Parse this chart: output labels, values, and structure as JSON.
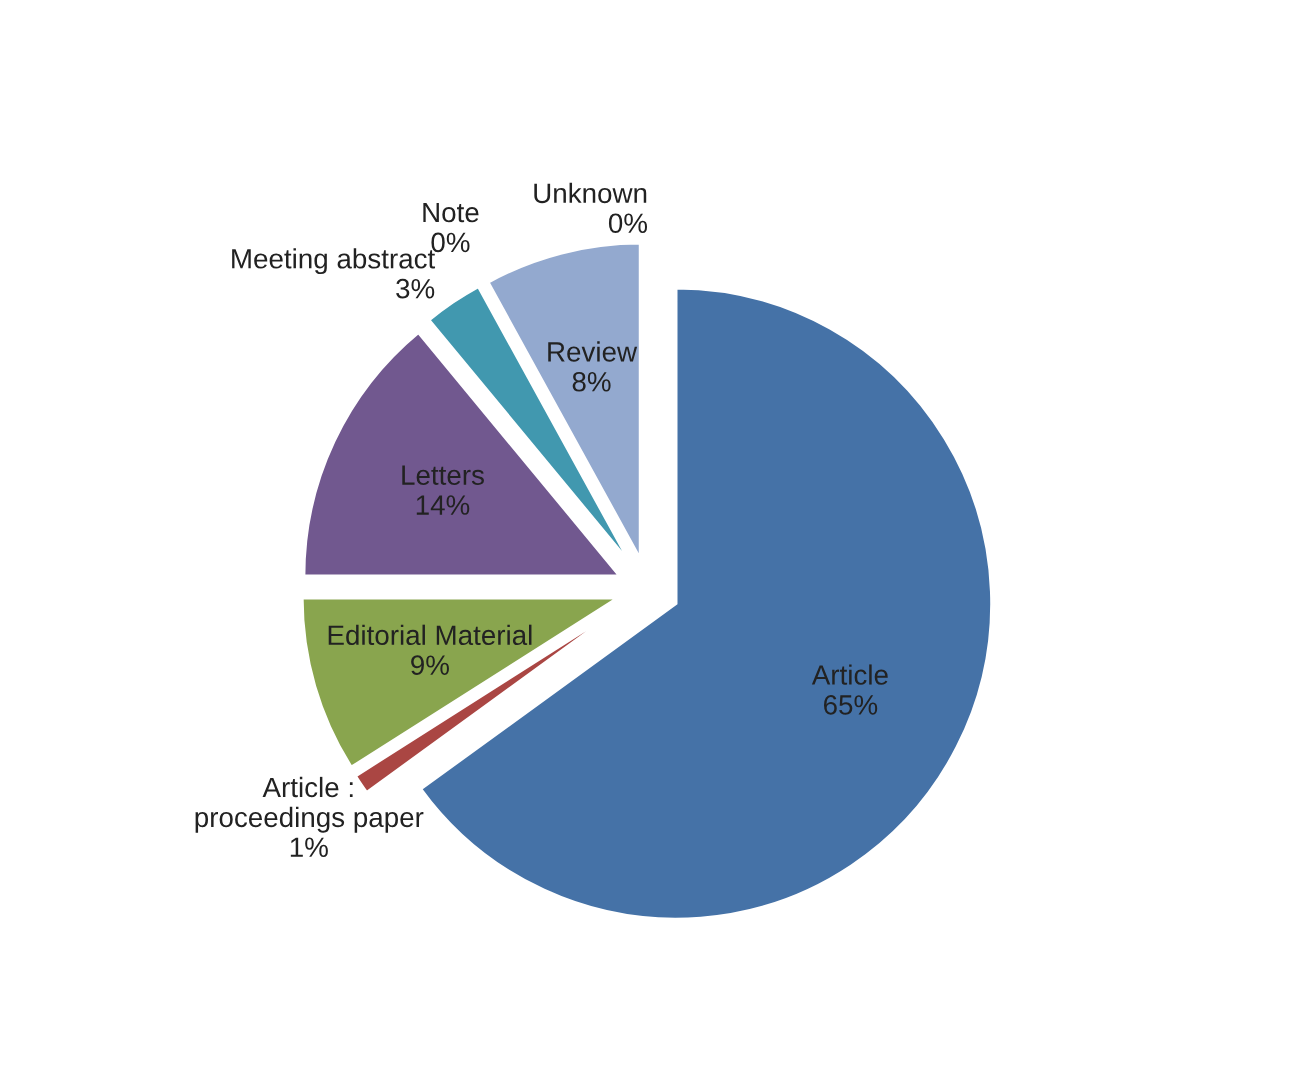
{
  "chart_data": {
    "type": "pie",
    "categories": [
      "Article",
      "Article :\nproceedings paper",
      "Editorial Material",
      "Letters",
      "Meeting abstract",
      "Note",
      "Review",
      "Unknown"
    ],
    "values": [
      65,
      1,
      9,
      14,
      3,
      0,
      8,
      0
    ],
    "value_labels": [
      "65%",
      "1%",
      "9%",
      "14%",
      "3%",
      "0%",
      "8%",
      "0%"
    ],
    "colors": [
      "#4572a7",
      "#aa4643",
      "#89a54e",
      "#71588f",
      "#4198af",
      "#db843d",
      "#93a9cf",
      "#d19392"
    ],
    "legend": false
  }
}
